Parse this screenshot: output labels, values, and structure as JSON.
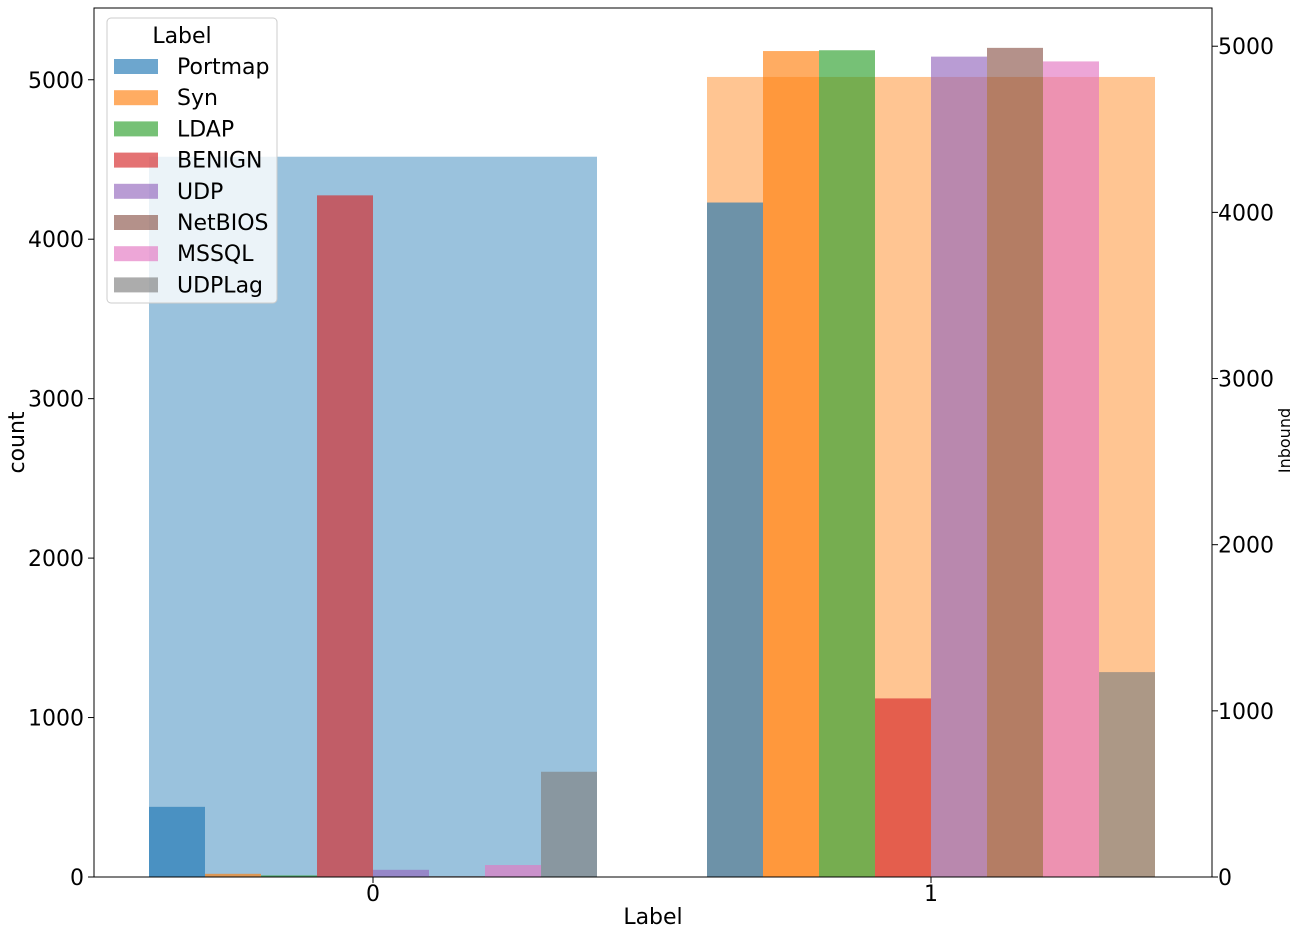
{
  "chart_data": {
    "type": "bar",
    "xlabel": "Label",
    "ylabel": "count",
    "ylabel_right": "Inbound",
    "categories": [
      "0",
      "1"
    ],
    "left_ylim": [
      0,
      5450
    ],
    "left_yticks": [
      "0",
      "1000",
      "2000",
      "3000",
      "4000",
      "5000"
    ],
    "right_ylim": [
      0,
      5230
    ],
    "right_yticks": [
      "0",
      "1000",
      "2000",
      "3000",
      "4000",
      "5000"
    ],
    "legend": {
      "title": "Label",
      "placement": "upper-left",
      "entries": [
        "Portmap",
        "Syn",
        "LDAP",
        "BENIGN",
        "UDP",
        "NetBIOS",
        "MSSQL",
        "UDPLag"
      ]
    },
    "series": [
      {
        "name": "Portmap",
        "color": "#1f77b4",
        "values": [
          440,
          4230
        ]
      },
      {
        "name": "Syn",
        "color": "#ff7f0e",
        "values": [
          20,
          5180
        ]
      },
      {
        "name": "LDAP",
        "color": "#2ca02c",
        "values": [
          10,
          5185
        ]
      },
      {
        "name": "BENIGN",
        "color": "#d62728",
        "values": [
          4275,
          1120
        ]
      },
      {
        "name": "UDP",
        "color": "#9467bd",
        "values": [
          45,
          5145
        ]
      },
      {
        "name": "NetBIOS",
        "color": "#8c564b",
        "values": [
          5,
          5200
        ]
      },
      {
        "name": "MSSQL",
        "color": "#e377c2",
        "values": [
          75,
          5115
        ]
      },
      {
        "name": "UDPLag",
        "color": "#7f7f7f",
        "values": [
          660,
          1285
        ]
      }
    ],
    "background_series": {
      "axis": "right",
      "values": [
        4335,
        4815
      ],
      "colors": [
        "#1f77b4",
        "#ff7f0e"
      ]
    }
  }
}
